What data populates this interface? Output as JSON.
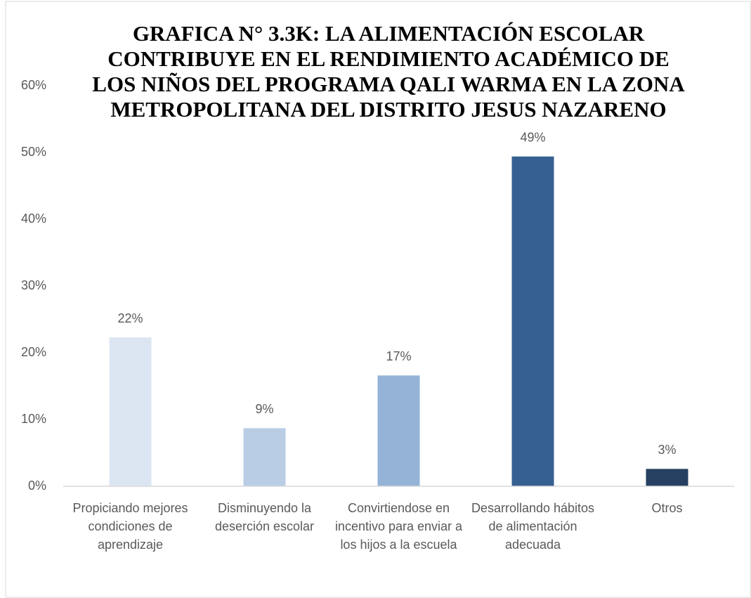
{
  "chart_data": {
    "type": "bar",
    "title": "GRAFICA N° 3.3K: LA ALIMENTACIÓN ESCOLAR CONTRIBUYE EN EL RENDIMIENTO ACADÉMICO DE LOS NIÑOS DEL PROGRAMA QALI WARMA EN LA ZONA METROPOLITANA DEL DISTRITO JESUS NAZARENO",
    "categories": [
      "Propiciando mejores condiciones de aprendizaje",
      "Disminuyendo la deserción escolar",
      "Convirtiendose en incentivo para enviar a los hijos a la escuela",
      "Desarrollando hábitos de alimentación adecuada",
      "Otros"
    ],
    "values": [
      22.3,
      8.7,
      16.6,
      49.4,
      2.6
    ],
    "value_labels": [
      "22%",
      "9%",
      "17%",
      "49%",
      "3%"
    ],
    "colors": [
      "#dce6f2",
      "#b9cde5",
      "#95b3d7",
      "#376092",
      "#254061"
    ],
    "ylim": [
      0,
      60
    ],
    "yticks": [
      {
        "value": 0,
        "label": "0%"
      },
      {
        "value": 10,
        "label": "10%"
      },
      {
        "value": 20,
        "label": "20%"
      },
      {
        "value": 30,
        "label": "30%"
      },
      {
        "value": 40,
        "label": "40%"
      },
      {
        "value": 50,
        "label": "50%"
      },
      {
        "value": 60,
        "label": "60%"
      }
    ],
    "grid": false
  }
}
